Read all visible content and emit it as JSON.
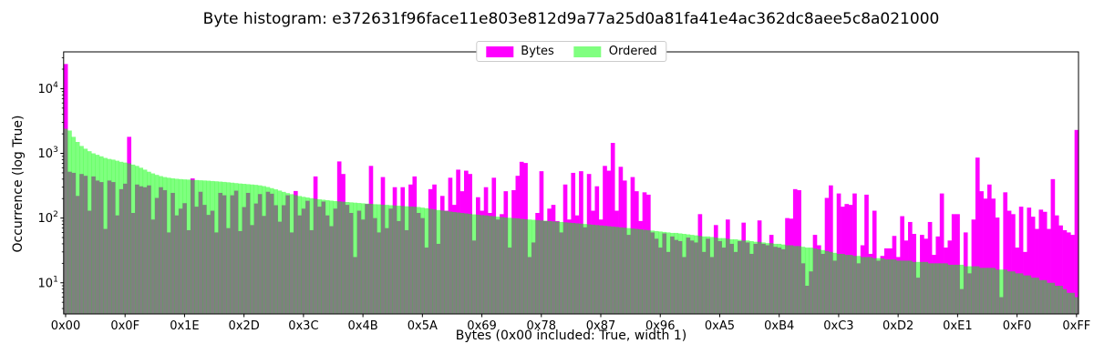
{
  "title": "Byte histogram: e372631f96face11e803e812d9a77a25d0a81fa41e4ac362dc8aee5c8a021000",
  "legend": {
    "bytes_label": "Bytes",
    "ordered_label": "Ordered"
  },
  "chart_data": {
    "type": "bar",
    "title": "Byte histogram: e372631f96face11e803e812d9a77a25d0a81fa41e4ac362dc8aee5c8a021000",
    "xlabel": "Bytes (0x00 included: True, width 1)",
    "ylabel": "Occurrence (log True)",
    "yscale": "log",
    "ylim": [
      3.3,
      37000
    ],
    "grid": false,
    "legend_position": "upper center",
    "n_bins": 256,
    "bar_width": 1,
    "x_tick_labels": [
      "0x00",
      "0x0F",
      "0x1E",
      "0x2D",
      "0x3C",
      "0x4B",
      "0x5A",
      "0x69",
      "0x78",
      "0x87",
      "0x96",
      "0xA5",
      "0xB4",
      "0xC3",
      "0xD2",
      "0xE1",
      "0xF0",
      "0xFF"
    ],
    "x_tick_step": 15,
    "y_tick_exponents": [
      1,
      2,
      3,
      4
    ],
    "colors": {
      "bytes": "#ff00ff",
      "ordered": "#00ff00",
      "ordered_alpha": 0.5,
      "ordered_visual": "#80ff80",
      "overlap_visual": "#808080",
      "axis": "#000000",
      "legend_edge": "#cccccc",
      "background": "#ffffff"
    },
    "series": [
      {
        "name": "Bytes",
        "values": [
          24000,
          520,
          500,
          220,
          480,
          450,
          130,
          440,
          380,
          360,
          68,
          380,
          360,
          110,
          280,
          340,
          1800,
          120,
          330,
          310,
          300,
          320,
          95,
          205,
          300,
          270,
          60,
          245,
          110,
          140,
          170,
          65,
          410,
          150,
          255,
          160,
          112,
          130,
          60,
          245,
          225,
          70,
          225,
          265,
          63,
          148,
          245,
          78,
          168,
          235,
          108,
          255,
          238,
          158,
          88,
          158,
          225,
          60,
          262,
          110,
          140,
          185,
          65,
          440,
          150,
          180,
          110,
          75,
          140,
          750,
          480,
          160,
          120,
          25,
          130,
          95,
          165,
          640,
          100,
          60,
          430,
          70,
          140,
          300,
          90,
          300,
          65,
          330,
          440,
          120,
          100,
          35,
          280,
          330,
          40,
          220,
          130,
          420,
          160,
          560,
          260,
          540,
          480,
          45,
          210,
          130,
          300,
          120,
          420,
          95,
          115,
          260,
          35,
          270,
          450,
          740,
          710,
          25,
          42,
          120,
          530,
          90,
          140,
          160,
          90,
          60,
          330,
          95,
          500,
          110,
          530,
          72,
          480,
          130,
          310,
          95,
          640,
          540,
          1450,
          130,
          620,
          380,
          55,
          430,
          260,
          90,
          250,
          230,
          60,
          48,
          35,
          58,
          30,
          52,
          46,
          44,
          25,
          50,
          45,
          42,
          115,
          30,
          48,
          25,
          78,
          44,
          35,
          95,
          40,
          30,
          44,
          85,
          42,
          28,
          40,
          92,
          40,
          38,
          55,
          36,
          35,
          33,
          100,
          98,
          280,
          270,
          20,
          9,
          15,
          55,
          38,
          28,
          205,
          320,
          22,
          240,
          150,
          165,
          160,
          240,
          20,
          38,
          230,
          28,
          130,
          22,
          26,
          34,
          34,
          53,
          25,
          107,
          45,
          87,
          57,
          12,
          55,
          48,
          87,
          27,
          52,
          240,
          35,
          45,
          115,
          115,
          8,
          60,
          14,
          95,
          860,
          260,
          200,
          330,
          200,
          102,
          6,
          250,
          130,
          115,
          35,
          150,
          30,
          145,
          105,
          68,
          135,
          125,
          68,
          400,
          110,
          77,
          65,
          60,
          55,
          2300
        ]
      },
      {
        "name": "Ordered",
        "values": [
          2400,
          2250,
          1800,
          1500,
          1300,
          1180,
          1080,
          1000,
          950,
          900,
          850,
          820,
          800,
          770,
          740,
          720,
          700,
          670,
          640,
          600,
          560,
          520,
          490,
          465,
          445,
          430,
          420,
          412,
          405,
          400,
          396,
          393,
          390,
          387,
          384,
          381,
          378,
          374,
          370,
          366,
          362,
          357,
          352,
          347,
          342,
          338,
          334,
          330,
          326,
          320,
          312,
          302,
          290,
          278,
          266,
          254,
          243,
          234,
          226,
          219,
          213,
          208,
          203,
          199,
          195,
          192,
          189,
          186,
          183,
          181,
          179,
          177,
          175,
          173,
          171,
          169,
          167,
          166,
          164,
          163,
          161,
          160,
          158,
          157,
          155,
          154,
          152,
          151,
          150,
          148,
          145,
          142,
          139,
          136,
          133,
          131,
          128,
          126,
          124,
          122,
          120,
          118,
          116,
          114,
          113,
          111,
          110,
          108,
          107,
          105,
          104,
          102,
          101,
          100,
          99,
          97,
          96,
          95,
          94,
          93,
          92,
          91,
          90,
          89,
          88,
          87,
          86,
          85,
          84,
          83,
          82,
          81,
          80,
          79,
          78,
          77,
          76,
          75,
          74,
          73,
          72,
          71,
          70,
          69,
          68,
          67,
          66,
          65,
          64,
          63,
          62,
          61,
          60,
          59,
          59,
          58,
          57,
          56,
          55,
          54,
          53,
          52,
          52,
          51,
          50,
          49,
          49,
          48,
          47,
          47,
          46,
          45,
          45,
          44,
          43,
          43,
          42,
          41,
          41,
          40,
          40,
          39,
          38,
          38,
          37,
          37,
          36,
          35,
          35,
          34,
          33,
          32,
          31,
          30,
          29,
          28,
          28,
          27,
          27,
          26,
          26,
          25,
          25,
          25,
          24,
          24,
          24,
          23,
          23,
          23,
          22,
          22,
          22,
          22,
          21,
          21,
          21,
          21,
          20,
          20,
          20,
          20,
          20,
          19,
          19,
          19,
          19,
          18,
          18,
          18,
          18,
          17,
          17,
          17,
          17,
          16,
          16,
          16,
          15,
          15,
          14,
          14,
          13,
          13,
          12,
          12,
          11,
          11,
          10,
          10,
          9,
          9,
          8,
          7,
          7,
          6
        ]
      }
    ]
  }
}
